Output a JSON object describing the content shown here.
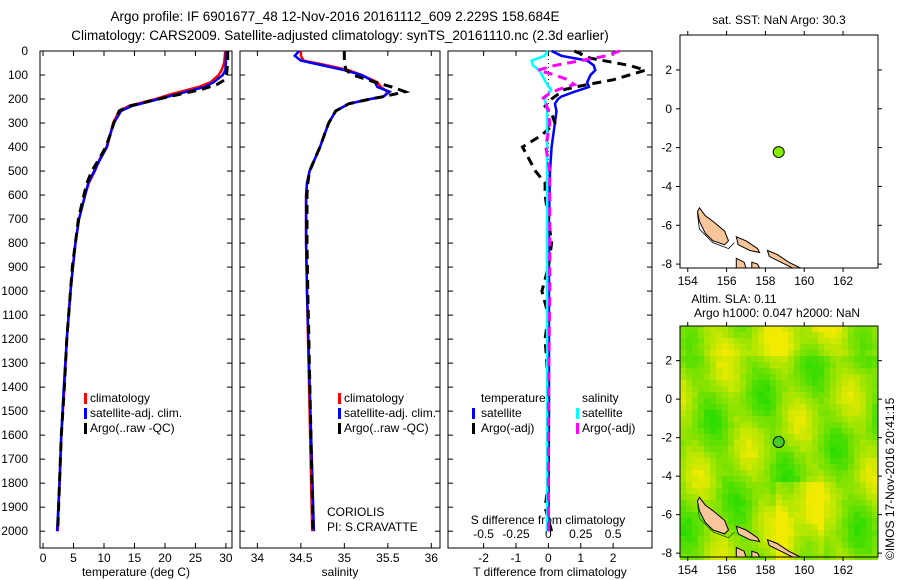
{
  "header": {
    "title_line1": "Argo profile: IF 6901677_48 12-Nov-2016 20161112_609 2.229S 158.684E",
    "title_line2": "Climatology: CARS2009. Satellite-adjusted climatology: synTS_20161110.nc (2.3d earlier)"
  },
  "footer": {
    "credit": "©IMOS 17-Nov-2016 20:41:15"
  },
  "colors": {
    "climatology": "#ff0000",
    "satellite": "#0000ff",
    "argo": "#000000",
    "sal_satellite": "#00ffff",
    "sal_argo": "#ff00ff",
    "land": "#f9c59a",
    "argo_point_top": "#88ee00",
    "argo_point_bottom": "#44cc22"
  },
  "chart_data": [
    {
      "type": "line",
      "panel": "temperature",
      "xlabel": "temperature (deg C)",
      "ylabel": "",
      "xlim": [
        -0.5,
        31
      ],
      "ylim": [
        2070,
        0
      ],
      "xticks": [
        0,
        5,
        10,
        15,
        20,
        25,
        30
      ],
      "yticks": [
        0,
        100,
        200,
        300,
        400,
        500,
        600,
        700,
        800,
        900,
        1000,
        1100,
        1200,
        1300,
        1400,
        1500,
        1600,
        1700,
        1800,
        1900,
        2000
      ],
      "legend": [
        "climatology",
        "satellite-adj. clim.",
        "Argo(..raw -QC)"
      ],
      "series": [
        {
          "name": "climatology",
          "depth": [
            0,
            50,
            80,
            100,
            130,
            150,
            180,
            200,
            230,
            250,
            300,
            350,
            400,
            450,
            500,
            550,
            600,
            700,
            800,
            900,
            1000,
            1200,
            1400,
            1600,
            1800,
            2000
          ],
          "values": [
            29.9,
            29.7,
            29.3,
            28.8,
            27.5,
            25.5,
            21,
            18.5,
            14,
            12.5,
            11.5,
            11,
            10.4,
            9.3,
            8.5,
            7.5,
            6.9,
            5.9,
            5.3,
            4.9,
            4.5,
            3.9,
            3.5,
            3.0,
            2.7,
            2.4
          ]
        },
        {
          "name": "satellite-adj. clim.",
          "depth": [
            0,
            50,
            80,
            100,
            130,
            150,
            180,
            200,
            230,
            250,
            300,
            350,
            400,
            450,
            500,
            550,
            600,
            700,
            800,
            900,
            1000,
            1200,
            1400,
            1600,
            1800,
            2000
          ],
          "values": [
            30.0,
            30.0,
            29.9,
            29.5,
            28,
            26.5,
            22,
            19,
            14.5,
            12.8,
            11.6,
            11,
            10.5,
            9.4,
            8.4,
            7.4,
            6.9,
            5.9,
            5.3,
            4.9,
            4.5,
            3.9,
            3.4,
            3.0,
            2.7,
            2.3
          ]
        },
        {
          "name": "Argo(..raw -QC)",
          "depth": [
            0,
            50,
            100,
            120,
            140,
            160,
            180,
            200,
            230,
            250,
            300,
            350,
            400,
            450,
            500,
            550,
            600,
            700,
            800,
            900,
            1000,
            1200,
            1400,
            1600,
            1800,
            2000
          ],
          "values": [
            30.3,
            30.3,
            30.1,
            29.8,
            28.5,
            26,
            22.5,
            19,
            14,
            12.5,
            11.6,
            11,
            10.3,
            9.2,
            8,
            7.2,
            6.7,
            5.8,
            5.3,
            4.8,
            4.5,
            3.9,
            3.5,
            3.0,
            2.7,
            2.4
          ]
        }
      ]
    },
    {
      "type": "line",
      "panel": "salinity",
      "xlabel": "salinity",
      "xlim": [
        33.8,
        36.1
      ],
      "ylim": [
        2070,
        0
      ],
      "xticks": [
        34,
        34.5,
        35,
        35.5,
        36
      ],
      "legend": [
        "climatology",
        "satellite-adj. clim.",
        "Argo(..raw -QC)"
      ],
      "annotation": [
        "CORIOLIS",
        "PI: S.CRAVATTE"
      ],
      "series": [
        {
          "name": "climatology",
          "depth": [
            0,
            20,
            40,
            60,
            80,
            100,
            130,
            150,
            170,
            190,
            200,
            220,
            250,
            300,
            350,
            400,
            450,
            500,
            550,
            600,
            800,
            1000,
            1500,
            2000
          ],
          "values": [
            34.5,
            34.5,
            34.53,
            34.8,
            35.05,
            35.2,
            35.38,
            35.42,
            35.5,
            35.45,
            35.3,
            35.05,
            34.9,
            34.82,
            34.77,
            34.72,
            34.66,
            34.6,
            34.57,
            34.56,
            34.56,
            34.57,
            34.6,
            34.63
          ]
        },
        {
          "name": "satellite-adj. clim.",
          "depth": [
            0,
            20,
            40,
            60,
            80,
            100,
            130,
            150,
            170,
            190,
            200,
            220,
            250,
            300,
            350,
            400,
            450,
            500,
            550,
            600,
            800,
            1000,
            1500,
            2000
          ],
          "values": [
            34.48,
            34.43,
            34.5,
            34.75,
            35.0,
            35.2,
            35.35,
            35.38,
            35.52,
            35.45,
            35.3,
            35.05,
            34.9,
            34.82,
            34.77,
            34.72,
            34.66,
            34.6,
            34.57,
            34.56,
            34.56,
            34.57,
            34.61,
            34.65
          ]
        },
        {
          "name": "Argo(..raw -QC)",
          "depth": [
            0,
            50,
            80,
            100,
            130,
            150,
            170,
            190,
            200,
            220,
            250,
            300,
            350,
            400,
            450,
            500,
            550,
            600,
            800,
            1000,
            1500,
            2000
          ],
          "values": [
            35.0,
            35.0,
            35.02,
            35.1,
            35.35,
            35.55,
            35.7,
            35.45,
            35.3,
            35.05,
            34.9,
            34.82,
            34.77,
            34.72,
            34.66,
            34.6,
            34.58,
            34.57,
            34.57,
            34.58,
            34.61,
            34.64
          ]
        }
      ]
    },
    {
      "type": "line",
      "panel": "difference",
      "xlabel": "T difference from climatology",
      "x2label": "S difference from climatology",
      "xlim": [
        -3.1,
        3.2
      ],
      "ylim": [
        2070,
        0
      ],
      "xticks": [
        -2,
        -1,
        0,
        1,
        2
      ],
      "x2ticks": [
        -0.5,
        -0.25,
        0,
        0.25,
        0.5
      ],
      "x2ticklabels": [
        "-0.5",
        "-0.25",
        "0",
        "0.25",
        "0.5"
      ],
      "legend": {
        "temperature_header": "temperature",
        "salinity_header": "salinity",
        "items": [
          "satellite",
          "Argo(-adj)",
          "satellite",
          "Argo(-adj)"
        ]
      },
      "series": [
        {
          "name": "T satellite",
          "variable": "T",
          "depth": [
            0,
            20,
            40,
            60,
            80,
            100,
            130,
            150,
            170,
            190,
            200,
            220,
            250,
            300,
            400,
            500,
            700,
            1000,
            1500,
            2000
          ],
          "values": [
            0.1,
            0.4,
            1.2,
            1.4,
            1.45,
            1.3,
            1.2,
            1.25,
            0.8,
            0.4,
            0.3,
            0.2,
            0.25,
            0.2,
            0.1,
            0.05,
            0.02,
            0.02,
            0.02,
            0.0
          ]
        },
        {
          "name": "T Argo(-adj)",
          "variable": "T",
          "depth": [
            0,
            30,
            60,
            80,
            100,
            120,
            140,
            160,
            180,
            200,
            230,
            260,
            300,
            350,
            400,
            450,
            500,
            550,
            600,
            700,
            800,
            900,
            1000,
            1100,
            1200,
            1400,
            1600,
            1800,
            1900,
            2000
          ],
          "values": [
            0.8,
            1.3,
            2.5,
            3.0,
            2.5,
            2.0,
            1.2,
            0.5,
            0.3,
            0.1,
            -0.1,
            0.1,
            0.2,
            -0.2,
            -0.8,
            -0.6,
            -0.4,
            -0.1,
            -0.1,
            0.0,
            0.1,
            0.0,
            -0.2,
            0.0,
            -0.1,
            0.0,
            0.0,
            0.0,
            -0.1,
            0.1
          ]
        },
        {
          "name": "S satellite",
          "variable": "S",
          "depth": [
            0,
            20,
            40,
            60,
            80,
            100,
            120,
            140,
            160,
            180,
            200,
            220,
            250,
            300,
            400,
            600,
            1000,
            1500,
            2000
          ],
          "values": [
            -0.005,
            -0.03,
            -0.13,
            -0.12,
            -0.07,
            -0.05,
            -0.03,
            -0.01,
            0.02,
            0.0,
            -0.03,
            -0.02,
            -0.01,
            -0.01,
            -0.01,
            -0.01,
            -0.01,
            -0.01,
            -0.01
          ]
        },
        {
          "name": "S Argo(-adj)",
          "variable": "S",
          "depth": [
            0,
            20,
            40,
            60,
            80,
            100,
            120,
            140,
            160,
            180,
            200,
            220,
            250,
            300,
            400,
            500,
            700,
            1000,
            1500,
            2000
          ],
          "values": [
            0.55,
            0.45,
            0.25,
            0.05,
            -0.08,
            0.05,
            0.15,
            0.2,
            0.08,
            0.0,
            -0.05,
            -0.02,
            0.0,
            0.01,
            -0.02,
            0.01,
            0.01,
            0.01,
            0.0,
            0.0
          ]
        }
      ]
    },
    {
      "type": "scatter",
      "panel": "map-sst",
      "title": "sat. SST: NaN Argo: 30.3",
      "xlim": [
        153.6,
        163.8
      ],
      "ylim": [
        -8.2,
        3.8
      ],
      "xticks": [
        154,
        156,
        158,
        160,
        162
      ],
      "yticks": [
        2,
        0,
        -2,
        -4,
        -6,
        -8
      ],
      "argo_position": {
        "lon": 158.684,
        "lat": -2.229
      }
    },
    {
      "type": "heatmap",
      "panel": "map-sla",
      "title_line1": "Altim. SLA: 0.11",
      "title_line2": "Argo h1000: 0.047 h2000: NaN",
      "xlim": [
        153.6,
        163.8
      ],
      "ylim": [
        -8.2,
        3.8
      ],
      "xticks": [
        154,
        156,
        158,
        160,
        162
      ],
      "yticks": [
        2,
        0,
        -2,
        -4,
        -6,
        -8
      ],
      "argo_position": {
        "lon": 158.684,
        "lat": -2.229
      }
    }
  ]
}
